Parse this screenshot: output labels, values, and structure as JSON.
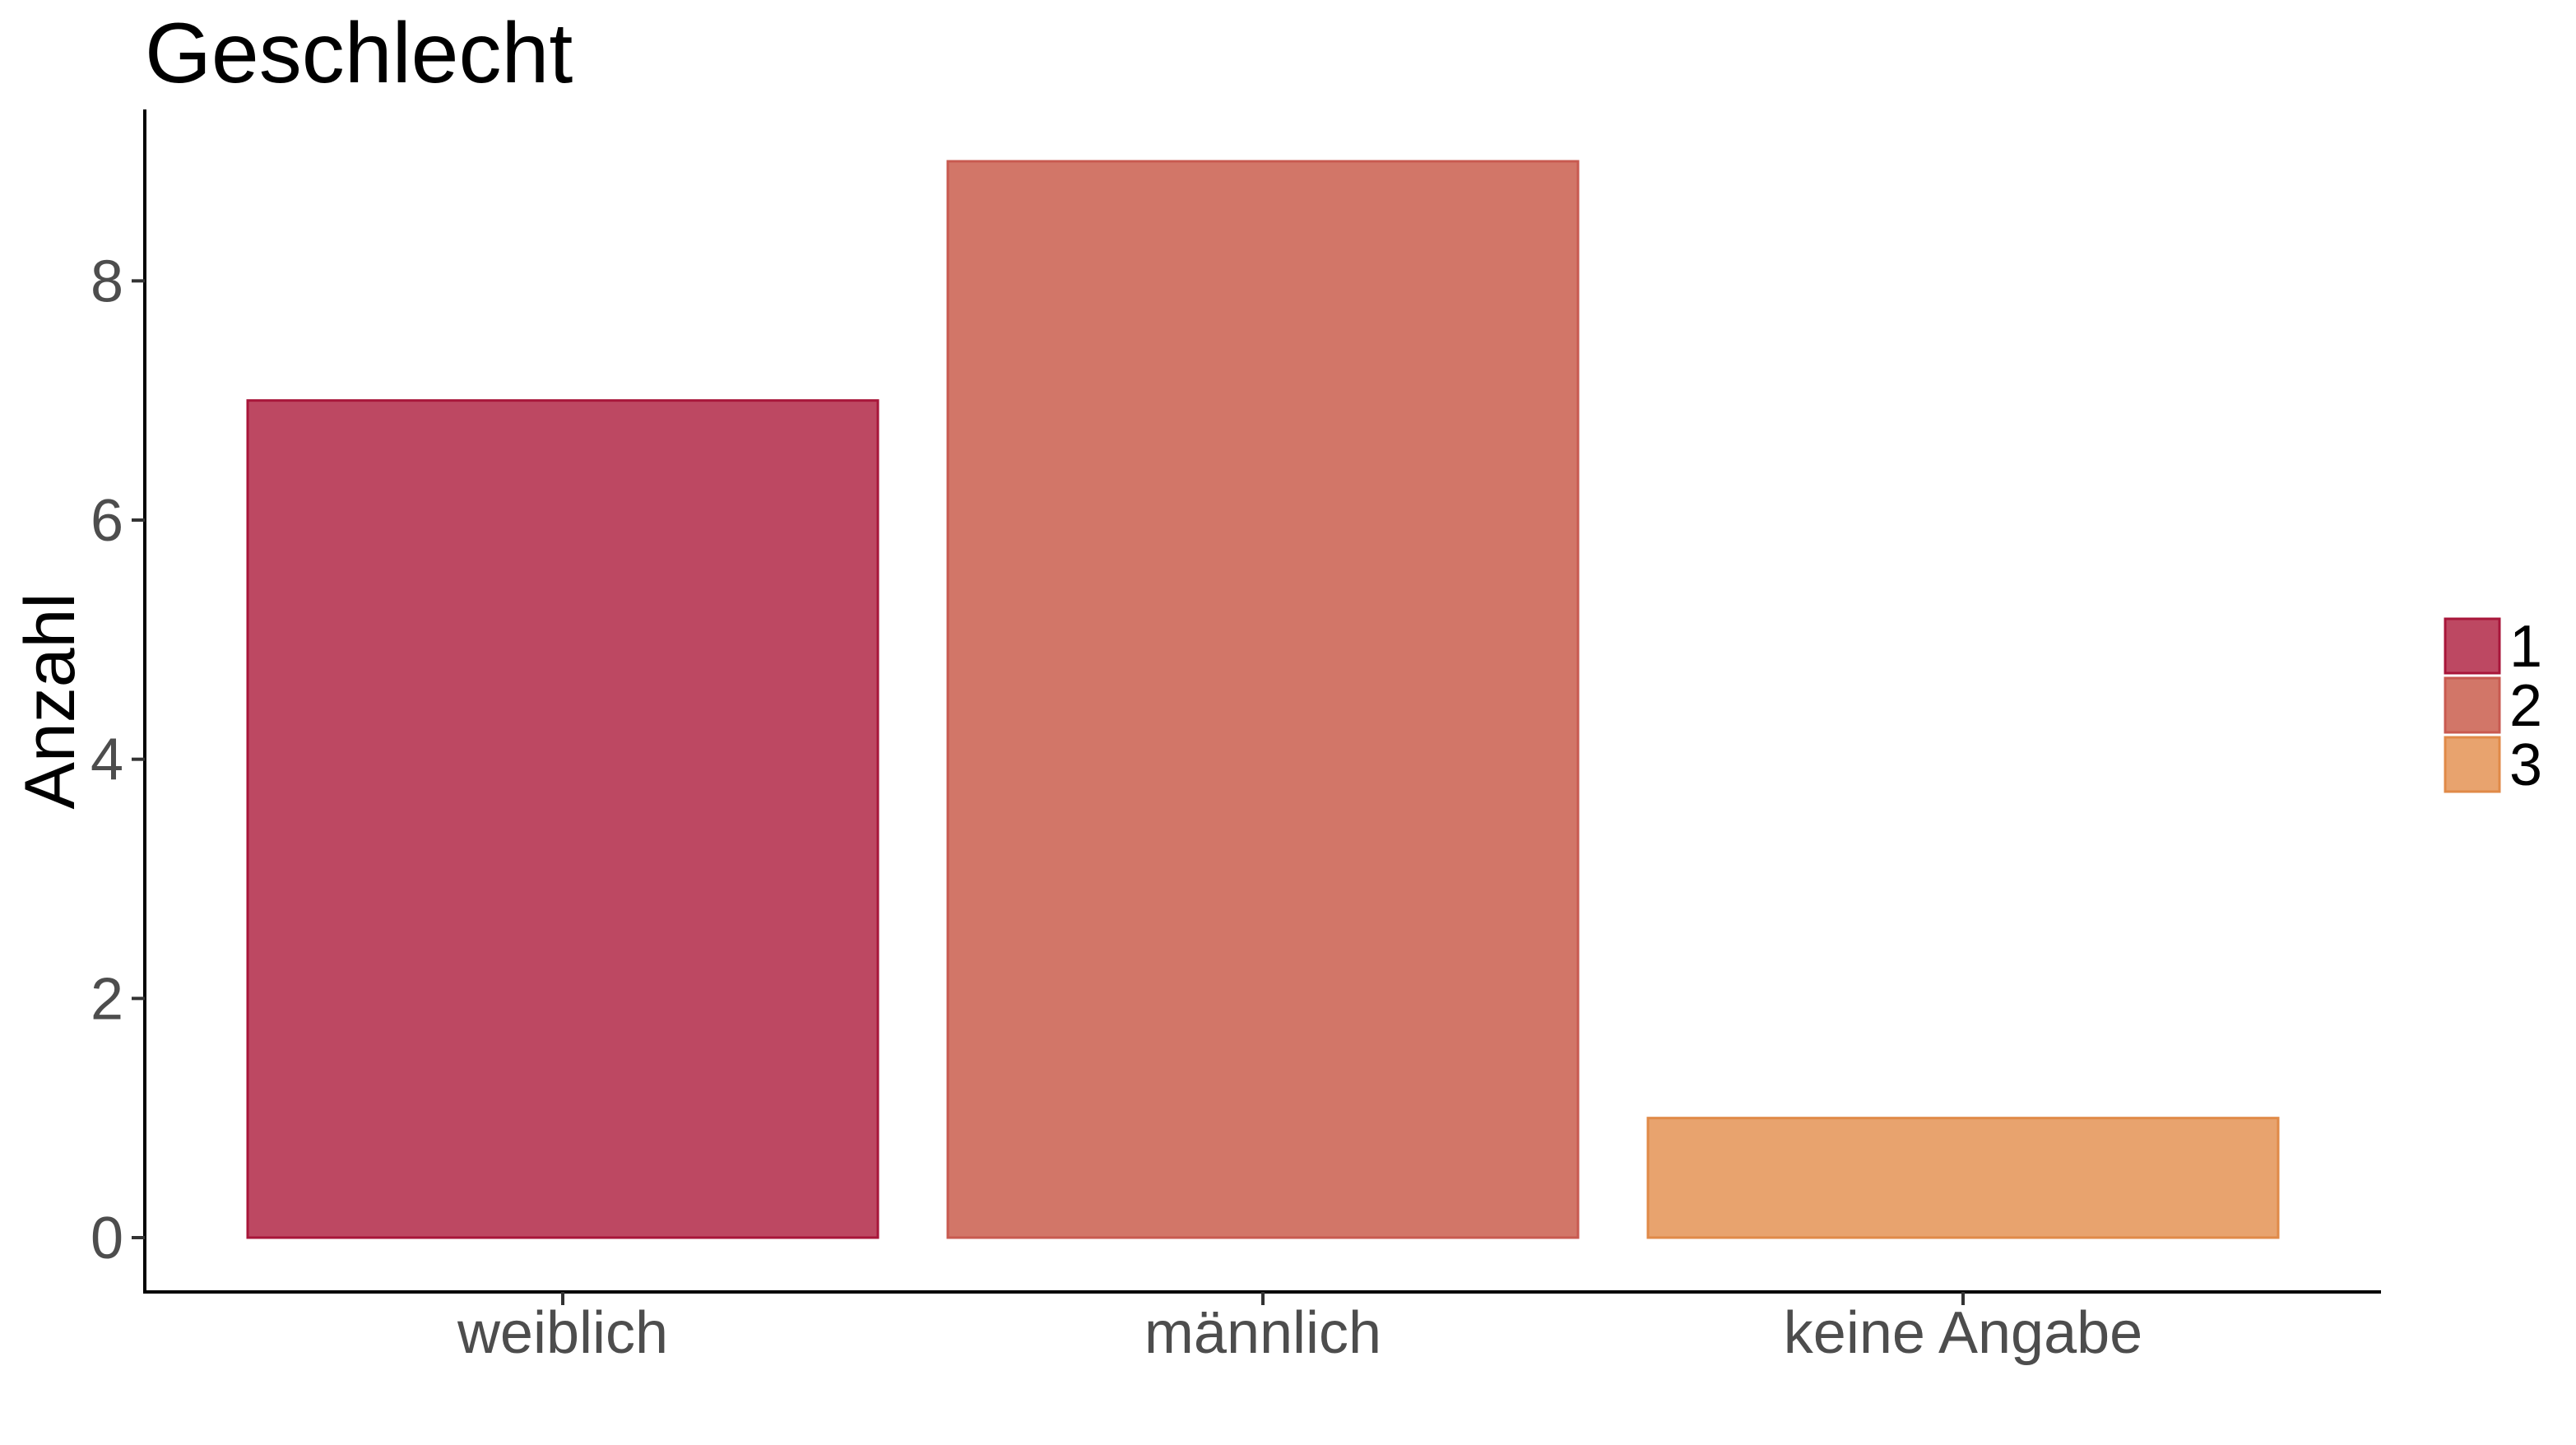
{
  "chart_data": {
    "type": "bar",
    "title": "Geschlecht",
    "xlabel": "",
    "ylabel": "Anzahl",
    "categories": [
      "weiblich",
      "männlich",
      "keine Angabe"
    ],
    "values": [
      7,
      9,
      1
    ],
    "ylim": [
      0,
      9
    ],
    "yticks": [
      0,
      2,
      4,
      6,
      8
    ],
    "grid": false,
    "legend": {
      "position": "right",
      "entries": [
        "1",
        "2",
        "3"
      ]
    },
    "colors": {
      "fills": [
        "#bd4862",
        "#d27668",
        "#e8a36e"
      ],
      "strokes": [
        "#a8163a",
        "#c85a50",
        "#e08a48"
      ],
      "axis": "#000000",
      "tick_labels": "#4d4d4d"
    }
  }
}
